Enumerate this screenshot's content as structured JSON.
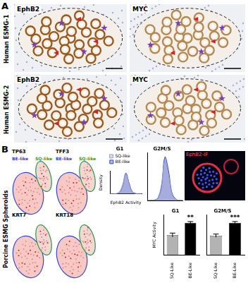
{
  "panel_a": {
    "label": "A",
    "columns": [
      "EphB2",
      "MYC"
    ],
    "rows": [
      "Human ESMG-1",
      "Human ESMG-2"
    ]
  },
  "panel_b": {
    "label": "B",
    "umap": {
      "title": "Porcine ESMG Spheroids",
      "genes": [
        "TP63",
        "TFF3",
        "KRT7",
        "KRT18"
      ],
      "clusters": [
        "BE-like",
        "SQ-like"
      ]
    },
    "if_image": {
      "title": "EphB2-IF"
    }
  },
  "chart_data": [
    {
      "type": "line",
      "title": "G1",
      "x_label": "EphB2 Activity",
      "y_label": "Density",
      "x": [
        0,
        1,
        2,
        3,
        4,
        5,
        6,
        7,
        8,
        9,
        10
      ],
      "series": [
        {
          "name": "SQ-like",
          "color": "#9aa3c4",
          "values": [
            0,
            0,
            0.02,
            0.1,
            0.45,
            0.95,
            0.5,
            0.1,
            0.02,
            0,
            0
          ]
        },
        {
          "name": "BE-like",
          "color": "#3346d6",
          "values": [
            0,
            0,
            0.01,
            0.08,
            0.4,
            1.0,
            0.55,
            0.12,
            0.03,
            0,
            0
          ]
        }
      ],
      "xlim": [
        0,
        10
      ],
      "ylim": [
        0,
        1.1
      ],
      "legend": "top",
      "tick_labels": false
    },
    {
      "type": "line",
      "title": "G2M/S",
      "x": [
        0,
        1,
        2,
        3,
        4,
        5,
        6,
        7,
        8,
        9,
        10
      ],
      "series": [
        {
          "name": "SQ-like",
          "color": "#9aa3c4",
          "values": [
            0,
            0,
            0.01,
            0.06,
            0.35,
            0.9,
            0.6,
            0.15,
            0.03,
            0,
            0
          ]
        },
        {
          "name": "BE-like",
          "color": "#3346d6",
          "values": [
            0,
            0,
            0.01,
            0.05,
            0.3,
            1.0,
            0.7,
            0.18,
            0.04,
            0,
            0
          ]
        }
      ],
      "xlim": [
        0,
        10
      ],
      "ylim": [
        0,
        1.1
      ],
      "tick_labels": false
    },
    {
      "type": "bar",
      "title": "G1",
      "y_label": "MYC Activity",
      "categories": [
        "SQ-Like",
        "BE-Like"
      ],
      "values": [
        0.62,
        1.0
      ],
      "errors": [
        0.06,
        0.04
      ],
      "colors": [
        "#b3b3b3",
        "#000000"
      ],
      "annotations": [
        {
          "category": "BE-Like",
          "text": "**"
        }
      ],
      "ylim": [
        0,
        1.25
      ],
      "tick_labels": "x"
    },
    {
      "type": "bar",
      "title": "G2M/S",
      "categories": [
        "SQ-Like",
        "BE-Like"
      ],
      "values": [
        0.6,
        1.0
      ],
      "errors": [
        0.05,
        0.04
      ],
      "colors": [
        "#b3b3b3",
        "#000000"
      ],
      "annotations": [
        {
          "category": "BE-Like",
          "text": "***"
        }
      ],
      "ylim": [
        0,
        1.25
      ],
      "tick_labels": "x"
    }
  ]
}
